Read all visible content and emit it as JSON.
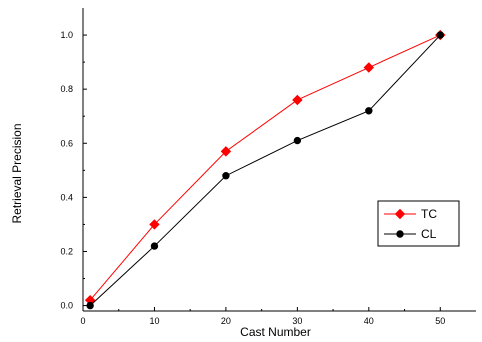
{
  "chart_data": {
    "type": "line",
    "xlabel": "Cast Number",
    "ylabel": "Retrieval Precision",
    "xlim": [
      0,
      55
    ],
    "ylim": [
      -0.02,
      1.1
    ],
    "xticks": [
      0,
      10,
      20,
      30,
      40,
      50
    ],
    "yticks": [
      0.0,
      0.2,
      0.4,
      0.6,
      0.8,
      1.0
    ],
    "xtick_labels": [
      "0",
      "10",
      "20",
      "30",
      "40",
      "50"
    ],
    "ytick_labels": [
      "0.0",
      "0.2",
      "0.4",
      "0.6",
      "0.8",
      "1.0"
    ],
    "grid": false,
    "legend_position": "right",
    "series": [
      {
        "name": "TC",
        "color": "#ff0000",
        "marker": "diamond",
        "x": [
          1,
          10,
          20,
          30,
          40,
          50
        ],
        "y": [
          0.02,
          0.3,
          0.57,
          0.76,
          0.88,
          1.0
        ]
      },
      {
        "name": "CL",
        "color": "#000000",
        "marker": "circle",
        "x": [
          1,
          10,
          20,
          30,
          40,
          50
        ],
        "y": [
          0.0,
          0.22,
          0.48,
          0.61,
          0.72,
          1.0
        ]
      }
    ]
  }
}
